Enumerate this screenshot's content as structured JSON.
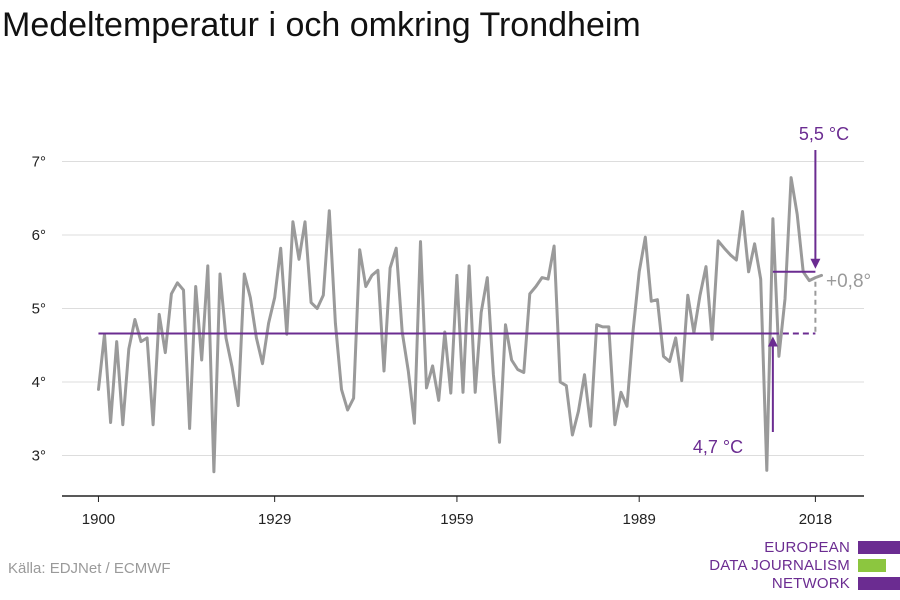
{
  "title": "Medeltemperatur i och omkring Trondheim",
  "source": "Källa: EDJNet / ECMWF",
  "logo": {
    "lines": [
      "EUROPEAN",
      "DATA JOURNALISM",
      "NETWORK"
    ],
    "colors": [
      "#6b2c91",
      "#8cc63f",
      "#6b2c91"
    ]
  },
  "colors": {
    "series": "#9a9a9a",
    "accent": "#6b2c91",
    "grid": "#dddddd",
    "axis": "#222222"
  },
  "chart_data": {
    "type": "line",
    "title": "Medeltemperatur i och omkring Trondheim",
    "xlabel": "",
    "ylabel": "",
    "x_ticks": [
      1900,
      1929,
      1959,
      1989,
      2018
    ],
    "x_tick_labels": [
      "1900",
      "1929",
      "1959",
      "1989",
      "2018"
    ],
    "y_ticks": [
      3,
      4,
      5,
      6,
      7
    ],
    "y_tick_labels": [
      "3°",
      "4°",
      "5°",
      "6°",
      "7°"
    ],
    "xlim": [
      1894,
      2026
    ],
    "ylim": [
      2.45,
      7.7
    ],
    "grid": true,
    "series": [
      {
        "x": [
          1900,
          1901,
          1902,
          1903,
          1904,
          1905,
          1906,
          1907,
          1908,
          1909,
          1910,
          1911,
          1912,
          1913,
          1914,
          1915,
          1916,
          1917,
          1918,
          1919,
          1920,
          1921,
          1922,
          1923,
          1924,
          1925,
          1926,
          1927,
          1928,
          1929,
          1930,
          1931,
          1932,
          1933,
          1934,
          1935,
          1936,
          1937,
          1938,
          1939,
          1940,
          1941,
          1942,
          1943,
          1944,
          1945,
          1946,
          1947,
          1948,
          1949,
          1950,
          1951,
          1952,
          1953,
          1954,
          1955,
          1956,
          1957,
          1958,
          1959,
          1960,
          1961,
          1962,
          1963,
          1964,
          1965,
          1966,
          1967,
          1968,
          1969,
          1970,
          1971,
          1972,
          1973,
          1974,
          1975,
          1976,
          1977,
          1978,
          1979,
          1980,
          1981,
          1982,
          1983,
          1984,
          1985,
          1986,
          1987,
          1988,
          1989,
          1990,
          1991,
          1992,
          1993,
          1994,
          1995,
          1996,
          1997,
          1998,
          1999,
          2000,
          2001,
          2002,
          2003,
          2004,
          2005,
          2006,
          2007,
          2008,
          2009,
          2010,
          2011,
          2012,
          2013,
          2014,
          2015,
          2016,
          2017,
          2018,
          2019
        ],
        "values": [
          3.9,
          4.65,
          3.45,
          4.55,
          3.42,
          4.45,
          4.85,
          4.55,
          4.6,
          3.42,
          4.92,
          4.4,
          5.2,
          5.35,
          5.25,
          3.37,
          5.3,
          4.3,
          5.58,
          2.78,
          5.47,
          4.6,
          4.2,
          3.68,
          5.47,
          5.15,
          4.6,
          4.25,
          4.8,
          5.15,
          5.82,
          4.65,
          6.18,
          5.67,
          6.18,
          5.08,
          5.0,
          5.18,
          6.33,
          4.8,
          3.9,
          3.62,
          3.78,
          5.8,
          5.3,
          5.45,
          5.52,
          4.15,
          5.55,
          5.82,
          4.68,
          4.15,
          3.44,
          5.91,
          3.92,
          4.22,
          3.75,
          4.68,
          3.85,
          5.45,
          3.86,
          5.58,
          3.86,
          4.95,
          5.42,
          4.1,
          3.18,
          4.78,
          4.3,
          4.17,
          4.13,
          5.2,
          5.3,
          5.42,
          5.4,
          5.85,
          4.0,
          3.95,
          3.28,
          3.6,
          4.1,
          3.4,
          4.78,
          4.75,
          4.75,
          3.42,
          3.86,
          3.67,
          4.7,
          5.5,
          5.97,
          5.1,
          5.12,
          4.35,
          4.28,
          4.6,
          4.02,
          5.18,
          4.67,
          5.18,
          5.57,
          4.58,
          5.92,
          5.82,
          5.73,
          5.66,
          6.32,
          5.5,
          5.88,
          5.4,
          2.8,
          6.22,
          4.35,
          5.13,
          6.78,
          6.28,
          5.5,
          5.38,
          5.42,
          5.45
        ]
      }
    ],
    "annotations": {
      "baseline": {
        "label": "4,7 °C",
        "value": 4.66,
        "from": 1900,
        "to": 2018
      },
      "recent": {
        "label": "5,5 °C",
        "value": 5.5,
        "from": 2011,
        "to": 2018
      },
      "difference": {
        "label": "+0,8°"
      }
    }
  }
}
